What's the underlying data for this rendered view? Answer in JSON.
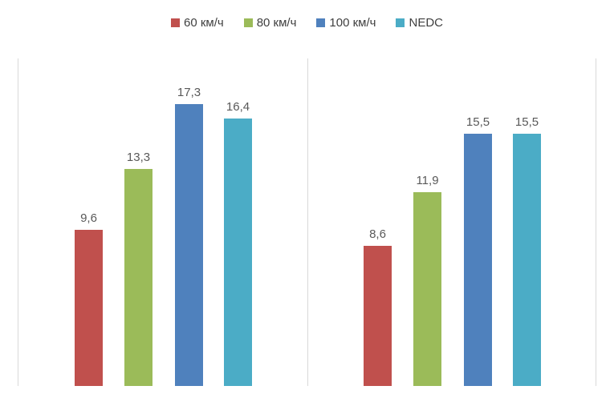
{
  "chart_data": {
    "type": "bar",
    "title": "",
    "xlabel": "",
    "ylabel": "",
    "categories": [
      "",
      ""
    ],
    "series": [
      {
        "name": "60 км/ч",
        "color": "#C0504D",
        "values": [
          9.6,
          8.6
        ],
        "labels": [
          "9,6",
          "8,6"
        ]
      },
      {
        "name": "80 км/ч",
        "color": "#9BBB59",
        "values": [
          13.3,
          11.9
        ],
        "labels": [
          "13,3",
          "11,9"
        ]
      },
      {
        "name": "100 км/ч",
        "color": "#4F81BD",
        "values": [
          17.3,
          15.5
        ],
        "labels": [
          "17,3",
          "15,5"
        ]
      },
      {
        "name": "NEDC",
        "color": "#4BACC6",
        "values": [
          16.4,
          15.5
        ],
        "labels": [
          "16,4",
          "15,5"
        ]
      }
    ],
    "ylim": [
      0,
      20
    ],
    "legend_position": "top",
    "legend_entries": [
      "60 км/ч",
      "80 км/ч",
      "100 км/ч",
      "NEDC"
    ],
    "grid": "vertical-panel-separators-only",
    "data_labels": true,
    "decimal_separator": ","
  },
  "colors": {
    "grid_line": "#D9D9D9",
    "legend_text": "#404040",
    "data_label_text": "#595959",
    "background": "#FFFFFF"
  }
}
